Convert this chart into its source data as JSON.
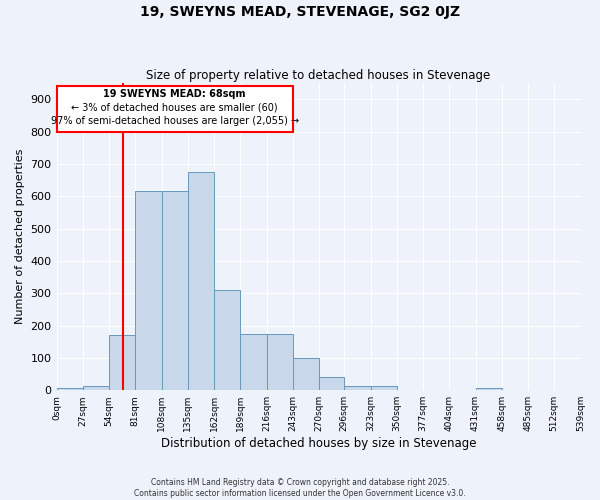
{
  "title": "19, SWEYNS MEAD, STEVENAGE, SG2 0JZ",
  "subtitle": "Size of property relative to detached houses in Stevenage",
  "xlabel": "Distribution of detached houses by size in Stevenage",
  "ylabel": "Number of detached properties",
  "bar_color": "#c8d8ea",
  "bar_edge_color": "#6699bb",
  "background_color": "#eef2fa",
  "grid_color": "#ffffff",
  "red_line_x": 68,
  "annotation_title": "19 SWEYNS MEAD: 68sqm",
  "annotation_line1": "← 3% of detached houses are smaller (60)",
  "annotation_line2": "97% of semi-detached houses are larger (2,055) →",
  "bin_edges": [
    0,
    27,
    54,
    81,
    108,
    135,
    162,
    189,
    216,
    243,
    270,
    296,
    323,
    350,
    377,
    404,
    431,
    458,
    485,
    512,
    539
  ],
  "bar_heights": [
    8,
    13,
    170,
    615,
    615,
    675,
    310,
    175,
    175,
    100,
    40,
    13,
    12,
    0,
    0,
    0,
    8,
    0,
    0,
    0
  ],
  "ylim": [
    0,
    950
  ],
  "yticks": [
    0,
    100,
    200,
    300,
    400,
    500,
    600,
    700,
    800,
    900
  ],
  "footer1": "Contains HM Land Registry data © Crown copyright and database right 2025.",
  "footer2": "Contains public sector information licensed under the Open Government Licence v3.0."
}
